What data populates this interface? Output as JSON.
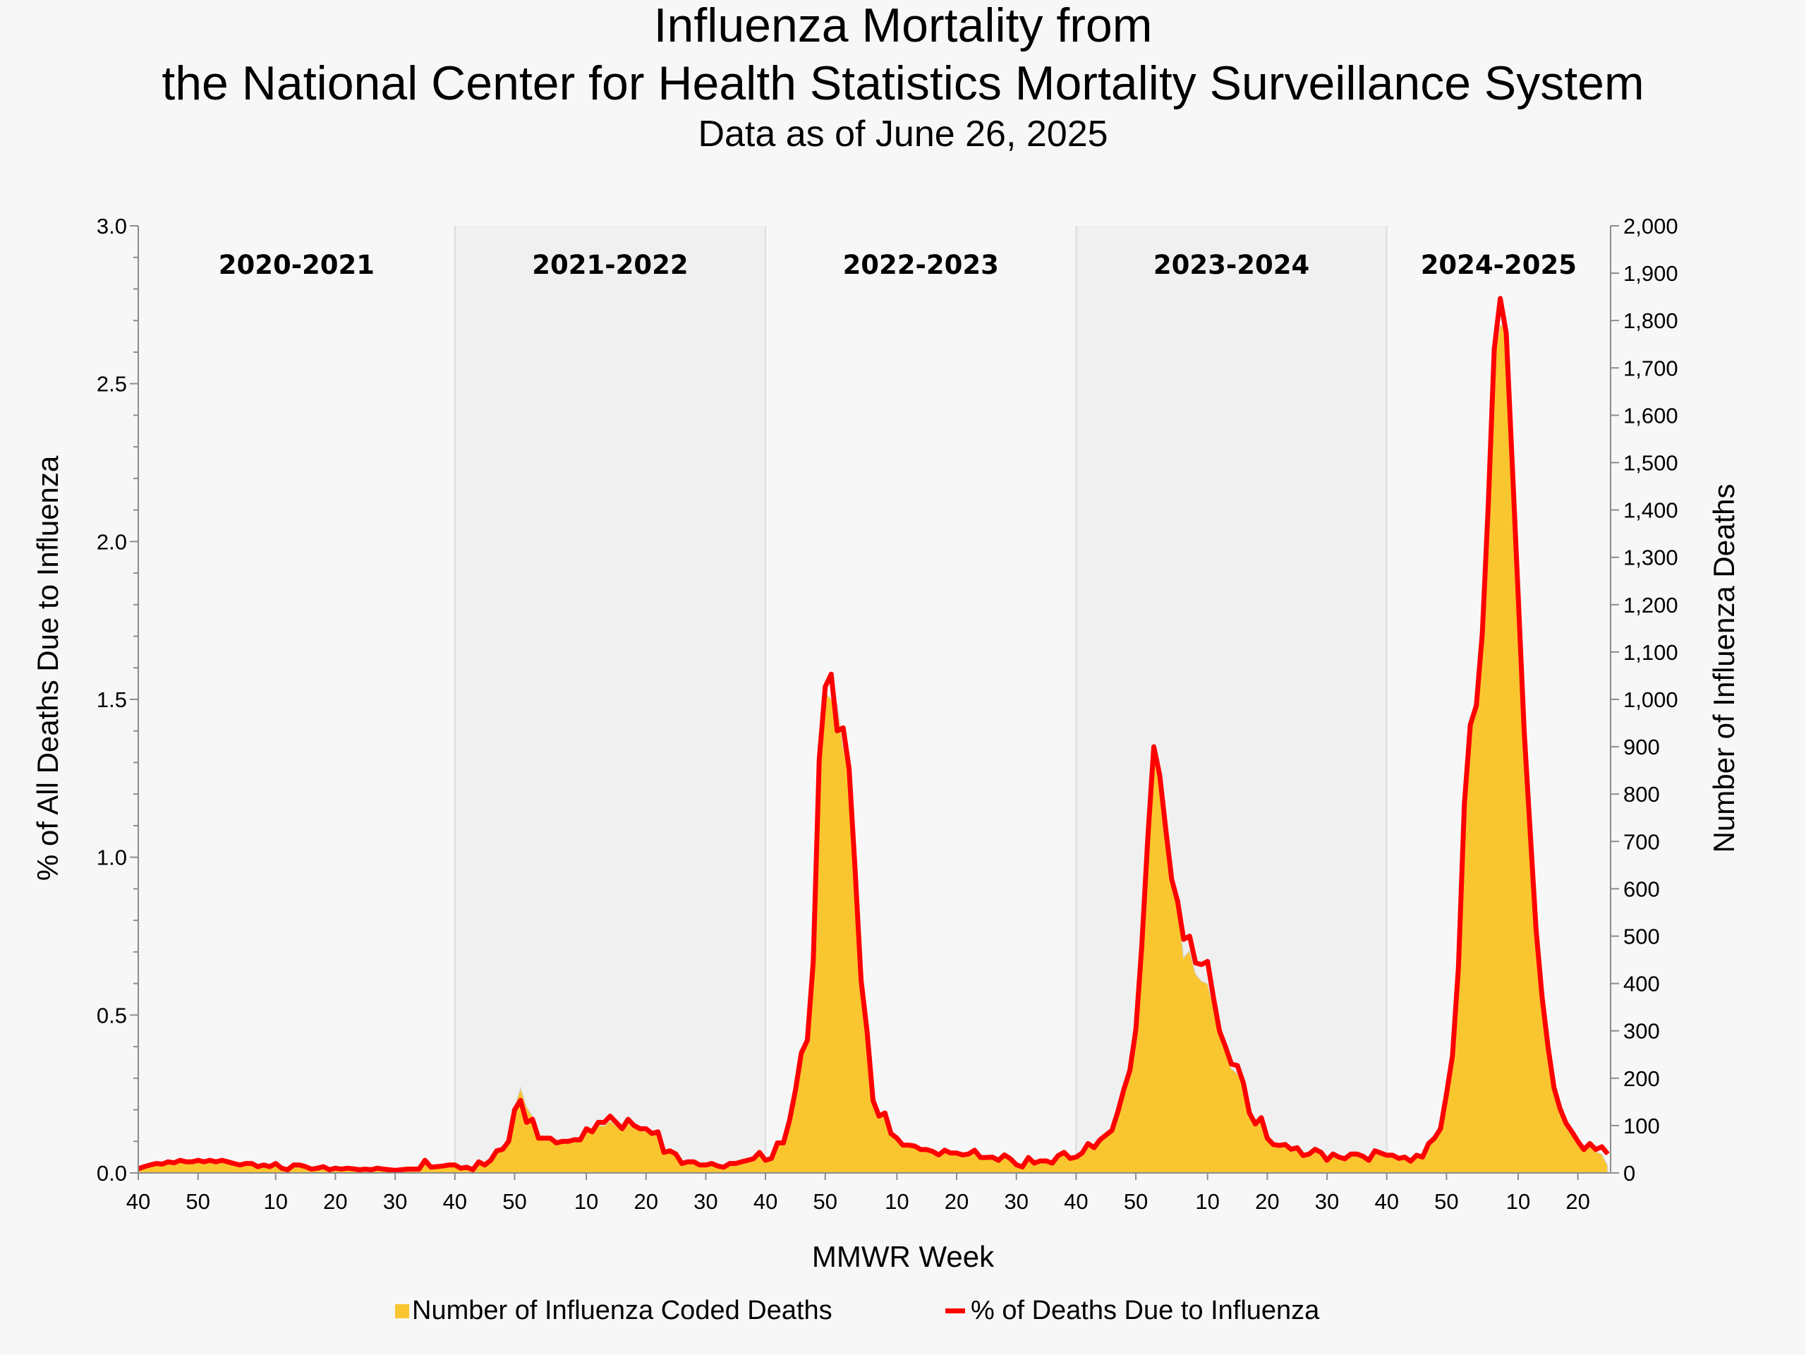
{
  "title_line1": "Influenza Mortality from",
  "title_line2": "the National Center for Health Statistics Mortality Surveillance System",
  "subtitle": "Data as of June 26, 2025",
  "chart_data": {
    "type": "area+line",
    "xlabel": "MMWR Week",
    "ylabel_left": "% of All Deaths Due to Influenza",
    "ylabel_right": "Number of Influenza Deaths",
    "ylim_left": [
      0,
      3.0
    ],
    "ylim_right": [
      0,
      2000
    ],
    "yticks_left": [
      "0.0",
      "0.5",
      "1.0",
      "1.5",
      "2.0",
      "2.5",
      "3.0"
    ],
    "yticks_right": [
      "0",
      "100",
      "200",
      "300",
      "400",
      "500",
      "600",
      "700",
      "800",
      "900",
      "1,000",
      "1,100",
      "1,200",
      "1,300",
      "1,400",
      "1,500",
      "1,600",
      "1,700",
      "1,800",
      "1,900",
      "2,000"
    ],
    "legend_placement": "bottom",
    "series_names": {
      "deaths": "Number of Influenza Coded Deaths",
      "pct": "% of Deaths Due to Influenza"
    },
    "colors": {
      "deaths": "#f9c630",
      "pct": "#ff0000",
      "shade": "#f0f0f0",
      "background": "#f7f7f7"
    },
    "seasons": [
      {
        "label": "2020-2021",
        "shaded": false,
        "weeks": [
          40,
          41,
          42,
          43,
          44,
          45,
          46,
          47,
          48,
          49,
          50,
          51,
          52,
          53,
          1,
          2,
          3,
          4,
          5,
          6,
          7,
          8,
          9,
          10,
          11,
          12,
          13,
          14,
          15,
          16,
          17,
          18,
          19,
          20,
          21,
          22,
          23,
          24,
          25,
          26,
          27,
          28,
          29,
          30,
          31,
          32,
          33,
          34,
          35,
          36,
          37,
          38,
          39
        ],
        "pct": [
          0.013,
          0.02,
          0.025,
          0.03,
          0.028,
          0.035,
          0.032,
          0.04,
          0.035,
          0.035,
          0.04,
          0.035,
          0.04,
          0.035,
          0.04,
          0.035,
          0.03,
          0.025,
          0.03,
          0.03,
          0.02,
          0.025,
          0.02,
          0.03,
          0.015,
          0.01,
          0.025,
          0.025,
          0.02,
          0.012,
          0.015,
          0.02,
          0.01,
          0.015,
          0.012,
          0.015,
          0.013,
          0.01,
          0.012,
          0.01,
          0.015,
          0.012,
          0.01,
          0.008,
          0.01,
          0.012,
          0.012,
          0.012,
          0.04,
          0.018,
          0.02,
          0.022,
          0.025
        ],
        "deaths": [
          9,
          13,
          17,
          20,
          18,
          23,
          21,
          26,
          23,
          23,
          26,
          23,
          30,
          23,
          26,
          23,
          20,
          17,
          20,
          20,
          13,
          17,
          13,
          20,
          10,
          7,
          17,
          17,
          13,
          8,
          10,
          13,
          7,
          10,
          8,
          10,
          9,
          7,
          8,
          7,
          10,
          8,
          7,
          5,
          7,
          8,
          8,
          8,
          26,
          12,
          13,
          15,
          17
        ]
      },
      {
        "label": "2021-2022",
        "shaded": true,
        "weeks": [
          40,
          41,
          42,
          43,
          44,
          45,
          46,
          47,
          48,
          49,
          50,
          51,
          52,
          1,
          2,
          3,
          4,
          5,
          6,
          7,
          8,
          9,
          10,
          11,
          12,
          13,
          14,
          15,
          16,
          17,
          18,
          19,
          20,
          21,
          22,
          23,
          24,
          25,
          26,
          27,
          28,
          29,
          30,
          31,
          32,
          33,
          34,
          35,
          36,
          37,
          38,
          39
        ],
        "pct": [
          0.025,
          0.015,
          0.018,
          0.01,
          0.035,
          0.025,
          0.04,
          0.07,
          0.075,
          0.1,
          0.2,
          0.23,
          0.16,
          0.17,
          0.11,
          0.11,
          0.11,
          0.095,
          0.1,
          0.1,
          0.105,
          0.105,
          0.14,
          0.13,
          0.16,
          0.16,
          0.18,
          0.16,
          0.14,
          0.17,
          0.15,
          0.14,
          0.14,
          0.125,
          0.13,
          0.065,
          0.07,
          0.06,
          0.03,
          0.035,
          0.035,
          0.025,
          0.025,
          0.03,
          0.022,
          0.018,
          0.03,
          0.03,
          0.035,
          0.04,
          0.045,
          0.065
        ],
        "deaths": [
          17,
          10,
          12,
          7,
          23,
          17,
          26,
          46,
          50,
          66,
          140,
          180,
          140,
          120,
          80,
          75,
          72,
          63,
          66,
          66,
          70,
          70,
          90,
          86,
          100,
          100,
          110,
          100,
          90,
          105,
          95,
          90,
          88,
          80,
          82,
          43,
          46,
          40,
          20,
          23,
          23,
          17,
          17,
          20,
          15,
          12,
          20,
          20,
          23,
          26,
          30,
          43
        ]
      },
      {
        "label": "2022-2023",
        "shaded": false,
        "weeks": [
          40,
          41,
          42,
          43,
          44,
          45,
          46,
          47,
          48,
          49,
          50,
          51,
          52,
          1,
          2,
          3,
          4,
          5,
          6,
          7,
          8,
          9,
          10,
          11,
          12,
          13,
          14,
          15,
          16,
          17,
          18,
          19,
          20,
          21,
          22,
          23,
          24,
          25,
          26,
          27,
          28,
          29,
          30,
          31,
          32,
          33,
          34,
          35,
          36,
          37,
          38,
          39
        ],
        "pct": [
          0.04,
          0.046,
          0.095,
          0.095,
          0.165,
          0.26,
          0.38,
          0.42,
          0.67,
          1.31,
          1.54,
          1.58,
          1.4,
          1.41,
          1.28,
          0.96,
          0.61,
          0.45,
          0.23,
          0.18,
          0.19,
          0.125,
          0.11,
          0.088,
          0.088,
          0.085,
          0.074,
          0.074,
          0.068,
          0.057,
          0.072,
          0.063,
          0.063,
          0.057,
          0.06,
          0.072,
          0.049,
          0.049,
          0.05,
          0.04,
          0.057,
          0.045,
          0.026,
          0.019,
          0.049,
          0.031,
          0.038,
          0.038,
          0.031,
          0.055,
          0.065,
          0.046
        ],
        "deaths": [
          26,
          30,
          63,
          63,
          109,
          172,
          250,
          280,
          442,
          865,
          1015,
          1000,
          990,
          900,
          850,
          640,
          405,
          300,
          152,
          120,
          125,
          83,
          73,
          58,
          58,
          56,
          49,
          49,
          45,
          38,
          48,
          42,
          42,
          38,
          40,
          48,
          32,
          32,
          33,
          26,
          38,
          30,
          17,
          13,
          32,
          20,
          25,
          25,
          20,
          36,
          43,
          30
        ]
      },
      {
        "label": "2023-2024",
        "shaded": true,
        "weeks": [
          40,
          41,
          42,
          43,
          44,
          45,
          46,
          47,
          48,
          49,
          50,
          51,
          52,
          1,
          2,
          3,
          4,
          5,
          6,
          7,
          8,
          9,
          10,
          11,
          12,
          13,
          14,
          15,
          16,
          17,
          18,
          19,
          20,
          21,
          22,
          23,
          24,
          25,
          26,
          27,
          28,
          29,
          30,
          31,
          32,
          33,
          34,
          35,
          36,
          37,
          38,
          39
        ],
        "pct": [
          0.05,
          0.063,
          0.093,
          0.08,
          0.105,
          0.12,
          0.135,
          0.195,
          0.265,
          0.325,
          0.455,
          0.72,
          1.06,
          1.35,
          1.26,
          1.09,
          0.93,
          0.86,
          0.74,
          0.75,
          0.665,
          0.66,
          0.67,
          0.555,
          0.45,
          0.4,
          0.345,
          0.34,
          0.285,
          0.19,
          0.155,
          0.175,
          0.11,
          0.09,
          0.087,
          0.09,
          0.075,
          0.08,
          0.055,
          0.06,
          0.075,
          0.065,
          0.04,
          0.06,
          0.05,
          0.045,
          0.06,
          0.06,
          0.053,
          0.04,
          0.07,
          0.063
        ],
        "deaths": [
          33,
          42,
          61,
          53,
          69,
          79,
          89,
          129,
          175,
          215,
          300,
          475,
          700,
          880,
          830,
          720,
          610,
          565,
          455,
          470,
          420,
          405,
          400,
          350,
          290,
          255,
          220,
          210,
          185,
          120,
          100,
          112,
          72,
          59,
          57,
          59,
          50,
          53,
          36,
          40,
          50,
          43,
          26,
          40,
          33,
          30,
          40,
          40,
          35,
          26,
          46,
          42
        ]
      },
      {
        "label": "2024-2025",
        "shaded": false,
        "weeks": [
          40,
          41,
          42,
          43,
          44,
          45,
          46,
          47,
          48,
          49,
          50,
          51,
          52,
          1,
          2,
          3,
          4,
          5,
          6,
          7,
          8,
          9,
          10,
          11,
          12,
          13,
          14,
          15,
          16,
          17,
          18,
          19,
          20,
          21,
          22,
          23,
          24,
          25
        ],
        "pct": [
          0.056,
          0.056,
          0.046,
          0.05,
          0.037,
          0.056,
          0.05,
          0.093,
          0.11,
          0.14,
          0.25,
          0.37,
          0.65,
          1.17,
          1.42,
          1.48,
          1.71,
          2.12,
          2.61,
          2.77,
          2.66,
          2.25,
          1.83,
          1.4,
          1.085,
          0.77,
          0.557,
          0.4,
          0.27,
          0.204,
          0.158,
          0.13,
          0.1,
          0.074,
          0.093,
          0.074,
          0.083,
          0.06
        ],
        "deaths": [
          37,
          37,
          30,
          33,
          24,
          37,
          33,
          61,
          73,
          92,
          165,
          245,
          430,
          780,
          950,
          990,
          1140,
          1420,
          1730,
          1790,
          1790,
          1500,
          1220,
          930,
          720,
          510,
          370,
          265,
          180,
          135,
          105,
          87,
          67,
          50,
          55,
          45,
          40,
          15
        ]
      }
    ]
  }
}
